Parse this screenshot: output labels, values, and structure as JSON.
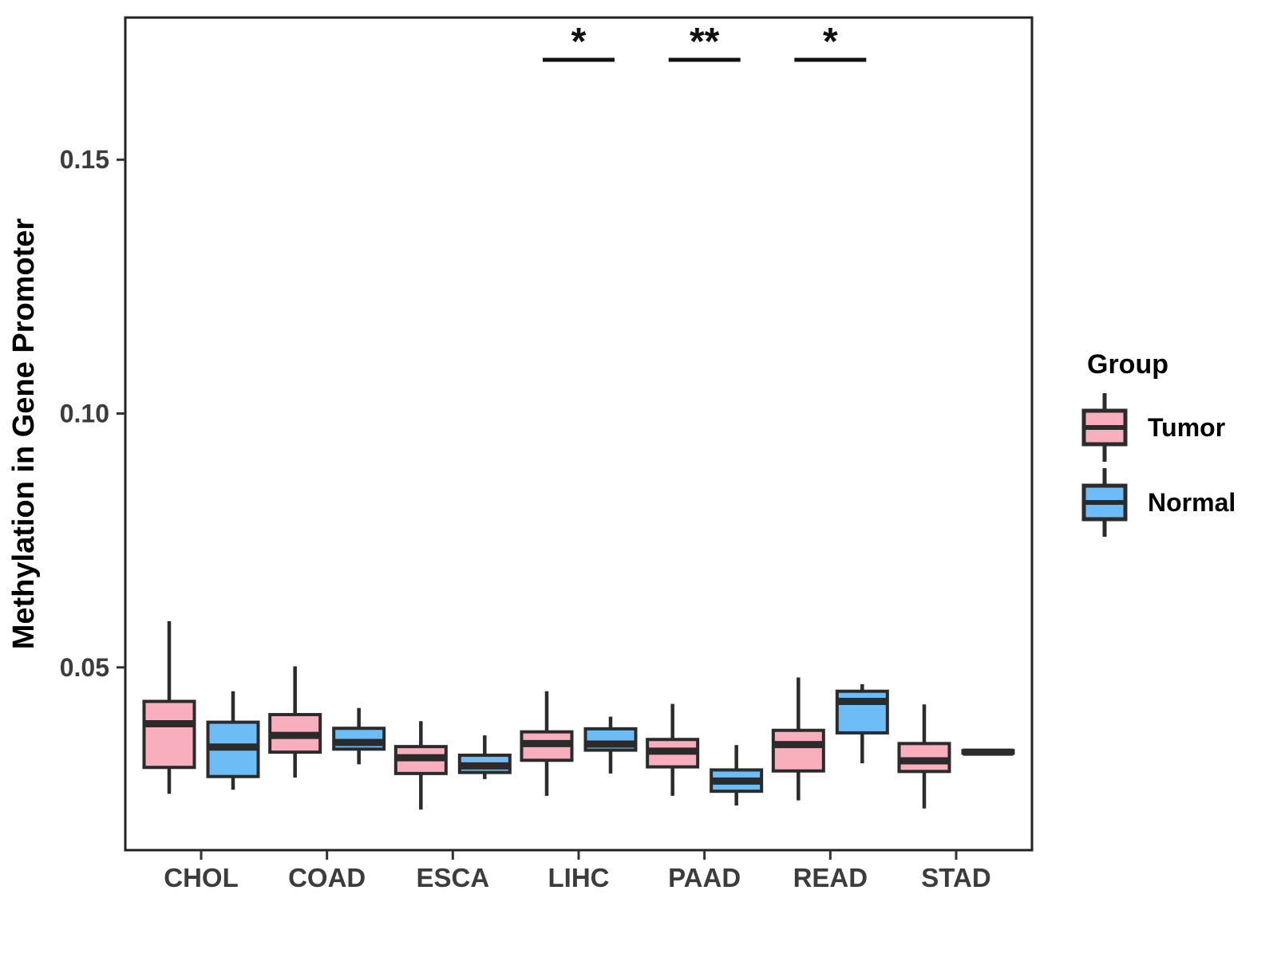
{
  "chart_data": {
    "type": "boxplot",
    "title": "",
    "xlabel": "",
    "ylabel": "Methylation in Gene Promoter",
    "ylim": [
      0.014,
      0.178
    ],
    "yticks": [
      0.05,
      0.1,
      0.15
    ],
    "ytick_labels": [
      "0.05",
      "0.10",
      "0.15"
    ],
    "categories": [
      "CHOL",
      "COAD",
      "ESCA",
      "LIHC",
      "PAAD",
      "READ",
      "STAD"
    ],
    "grid": false,
    "legend_position": "right",
    "outline_color": "#2B2B2B",
    "axis_text_color": "#3C3C3C",
    "series": [
      {
        "name": "Tumor",
        "color": "#F9AEBD",
        "boxes": [
          {
            "category": "CHOL",
            "low": 0.0251,
            "q1": 0.0303,
            "median": 0.0389,
            "q3": 0.0433,
            "high": 0.0591
          },
          {
            "category": "COAD",
            "low": 0.0283,
            "q1": 0.0333,
            "median": 0.0366,
            "q3": 0.0407,
            "high": 0.0502
          },
          {
            "category": "ESCA",
            "low": 0.022,
            "q1": 0.0291,
            "median": 0.0322,
            "q3": 0.0344,
            "high": 0.0394
          },
          {
            "category": "LIHC",
            "low": 0.0247,
            "q1": 0.0317,
            "median": 0.035,
            "q3": 0.0373,
            "high": 0.0453
          },
          {
            "category": "PAAD",
            "low": 0.0247,
            "q1": 0.0304,
            "median": 0.0335,
            "q3": 0.0358,
            "high": 0.0428
          },
          {
            "category": "READ",
            "low": 0.0238,
            "q1": 0.0296,
            "median": 0.0348,
            "q3": 0.0376,
            "high": 0.048
          },
          {
            "category": "STAD",
            "low": 0.0222,
            "q1": 0.0295,
            "median": 0.0316,
            "q3": 0.035,
            "high": 0.0427
          }
        ]
      },
      {
        "name": "Normal",
        "color": "#6DBCF5",
        "boxes": [
          {
            "category": "CHOL",
            "low": 0.0259,
            "q1": 0.0285,
            "median": 0.0343,
            "q3": 0.0392,
            "high": 0.0453
          },
          {
            "category": "COAD",
            "low": 0.0309,
            "q1": 0.0339,
            "median": 0.0352,
            "q3": 0.038,
            "high": 0.042
          },
          {
            "category": "ESCA",
            "low": 0.028,
            "q1": 0.0293,
            "median": 0.0306,
            "q3": 0.0327,
            "high": 0.0366
          },
          {
            "category": "LIHC",
            "low": 0.0291,
            "q1": 0.0337,
            "median": 0.0349,
            "q3": 0.0379,
            "high": 0.0403
          },
          {
            "category": "PAAD",
            "low": 0.0228,
            "q1": 0.0256,
            "median": 0.0276,
            "q3": 0.0298,
            "high": 0.0347
          },
          {
            "category": "READ",
            "low": 0.0311,
            "q1": 0.0371,
            "median": 0.0433,
            "q3": 0.0453,
            "high": 0.0467
          },
          {
            "category": "STAD",
            "low": 0.0329,
            "q1": 0.0331,
            "median": 0.0333,
            "q3": 0.0336,
            "high": 0.0338
          }
        ]
      }
    ],
    "significance": [
      {
        "category": "LIHC",
        "label": "*"
      },
      {
        "category": "PAAD",
        "label": "**"
      },
      {
        "category": "READ",
        "label": "*"
      }
    ]
  },
  "legend": {
    "title": "Group",
    "items": [
      {
        "label": "Tumor",
        "color": "#F9AEBD"
      },
      {
        "label": "Normal",
        "color": "#6DBCF5"
      }
    ]
  }
}
